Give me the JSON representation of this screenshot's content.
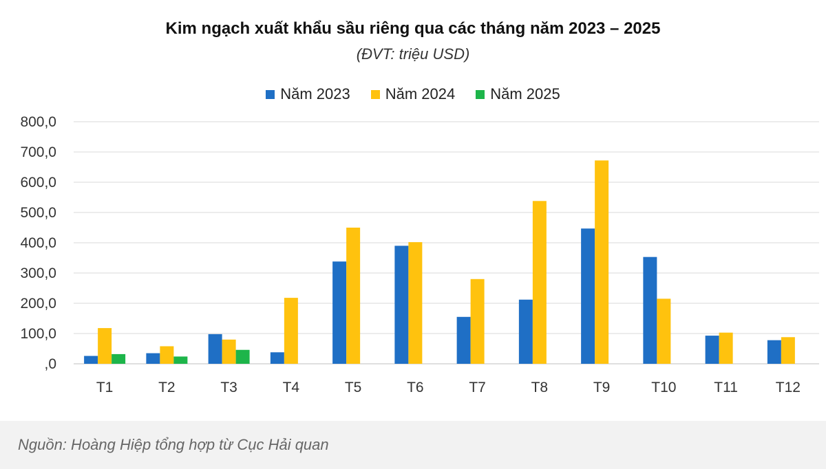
{
  "chart_data": {
    "type": "bar",
    "title": "Kim ngạch xuất khẩu sầu riêng qua các tháng năm 2023 – 2025",
    "subtitle": "(ĐVT: triệu USD)",
    "categories": [
      "T1",
      "T2",
      "T3",
      "T4",
      "T5",
      "T6",
      "T7",
      "T8",
      "T9",
      "T10",
      "T11",
      "T12"
    ],
    "series": [
      {
        "name": "Năm 2023",
        "color": "#1f6fc5",
        "values": [
          26,
          35,
          98,
          38,
          338,
          390,
          155,
          212,
          447,
          353,
          93,
          78
        ]
      },
      {
        "name": "Năm 2024",
        "color": "#ffc20e",
        "values": [
          118,
          58,
          80,
          218,
          450,
          402,
          280,
          538,
          672,
          215,
          103,
          88
        ]
      },
      {
        "name": "Năm 2025",
        "color": "#1db54a",
        "values": [
          32,
          24,
          46,
          null,
          null,
          null,
          null,
          null,
          null,
          null,
          null,
          null
        ]
      }
    ],
    "ylim": [
      0,
      800
    ],
    "yticks": [
      0,
      100,
      200,
      300,
      400,
      500,
      600,
      700,
      800
    ],
    "ytick_labels": [
      ",0",
      "100,0",
      "200,0",
      "300,0",
      "400,0",
      "500,0",
      "600,0",
      "700,0",
      "800,0"
    ],
    "grid": true,
    "legend_position": "top-center"
  },
  "source": "Nguồn: Hoàng Hiệp tổng hợp từ Cục Hải quan"
}
